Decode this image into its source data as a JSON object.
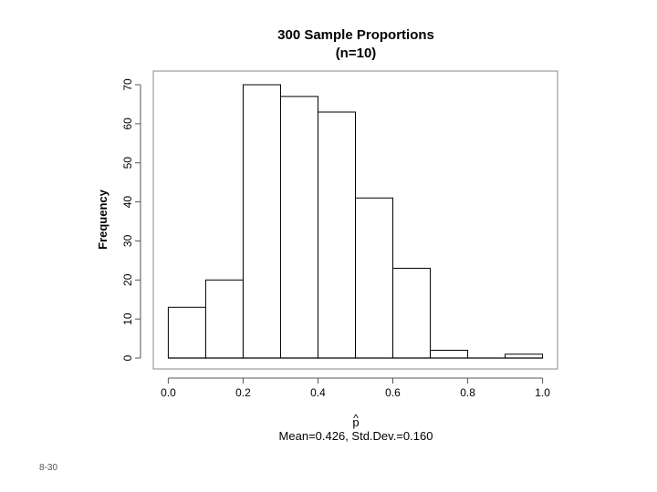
{
  "slide_number": "8-30",
  "chart_data": {
    "type": "bar",
    "title": "300 Sample Proportions",
    "subtitle": "(n=10)",
    "xlabel": "p",
    "xlabel_hat": "^",
    "xlabel_note": "Mean=0.426, Std.Dev.=0.160",
    "ylabel": "Frequency",
    "bin_edges": [
      0.0,
      0.1,
      0.2,
      0.3,
      0.4,
      0.5,
      0.6,
      0.7,
      0.8,
      0.9,
      1.0
    ],
    "values": [
      13,
      20,
      70,
      67,
      63,
      41,
      23,
      2,
      0,
      1
    ],
    "xlim": [
      -0.04,
      1.04
    ],
    "ylim": [
      -2.8,
      73.5
    ],
    "x_ticks": [
      0.0,
      0.2,
      0.4,
      0.6,
      0.8,
      1.0
    ],
    "x_tick_labels": [
      "0.0",
      "0.2",
      "0.4",
      "0.6",
      "0.8",
      "1.0"
    ],
    "y_ticks": [
      0,
      10,
      20,
      30,
      40,
      50,
      60,
      70
    ],
    "y_tick_labels": [
      "0",
      "10",
      "20",
      "30",
      "40",
      "50",
      "60",
      "70"
    ],
    "colors": {
      "bar_fill": "#ffffff",
      "bar_stroke": "#000000",
      "frame": "#888888"
    }
  }
}
